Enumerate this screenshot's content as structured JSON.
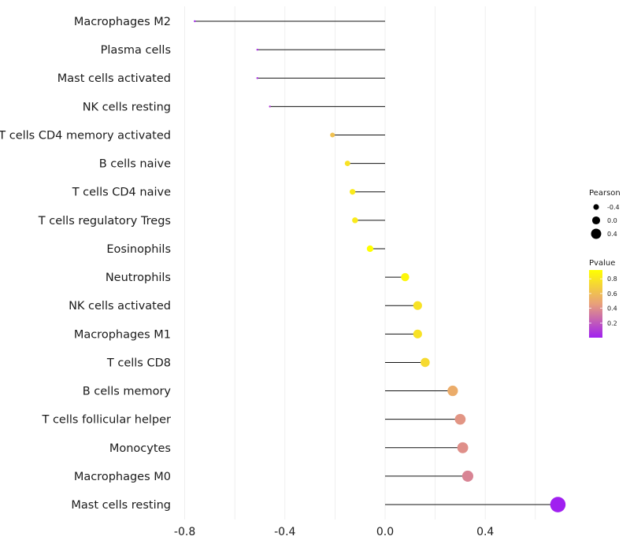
{
  "chart_data": {
    "type": "lollipop",
    "title": "",
    "xlabel": "",
    "ylabel": "",
    "xlim": [
      -0.8,
      0.7
    ],
    "xticks": [
      -0.8,
      -0.4,
      0.0,
      0.4
    ],
    "xtick_labels": [
      "-0.8",
      "-0.4",
      "0.0",
      "0.4"
    ],
    "grid": true,
    "baseline": 0.0,
    "categories": [
      "Macrophages M2",
      "Plasma cells",
      "Mast cells activated",
      "NK cells resting",
      "T cells CD4 memory activated",
      "B cells naive",
      "T cells CD4 naive",
      "T cells regulatory  Tregs ",
      "Eosinophils",
      "Neutrophils",
      "NK cells activated",
      "Macrophages M1",
      "T cells CD8",
      "B cells memory",
      "T cells follicular helper",
      "Monocytes",
      "Macrophages M0",
      "Mast cells resting"
    ],
    "values": [
      -0.76,
      -0.51,
      -0.51,
      -0.46,
      -0.21,
      -0.15,
      -0.13,
      -0.12,
      -0.06,
      0.08,
      0.13,
      0.13,
      0.16,
      0.27,
      0.3,
      0.31,
      0.33,
      0.69
    ],
    "pvalues": [
      0.02,
      0.06,
      0.06,
      0.1,
      0.62,
      0.78,
      0.82,
      0.82,
      0.96,
      0.88,
      0.78,
      0.78,
      0.74,
      0.52,
      0.42,
      0.4,
      0.36,
      0.0005
    ],
    "size_legend": {
      "title": "Pearson",
      "entries": [
        {
          "label": "-0.4",
          "value": -0.4
        },
        {
          "label": "0.0",
          "value": 0.0
        },
        {
          "label": "0.4",
          "value": 0.4
        }
      ]
    },
    "color_legend": {
      "title": "Pvalue",
      "ticks": [
        {
          "label": "0.8",
          "value": 0.8
        },
        {
          "label": "0.6",
          "value": 0.6
        },
        {
          "label": "0.4",
          "value": 0.4
        },
        {
          "label": "0.2",
          "value": 0.2
        }
      ],
      "range": [
        0.0,
        0.92
      ],
      "low_color": "#a020f0",
      "mid_color": "#e8a07a",
      "high_color": "#ffff00"
    },
    "colors": {
      "stem": "#111111",
      "grid": "#ebebeb",
      "text": "#1a1a1a"
    }
  }
}
